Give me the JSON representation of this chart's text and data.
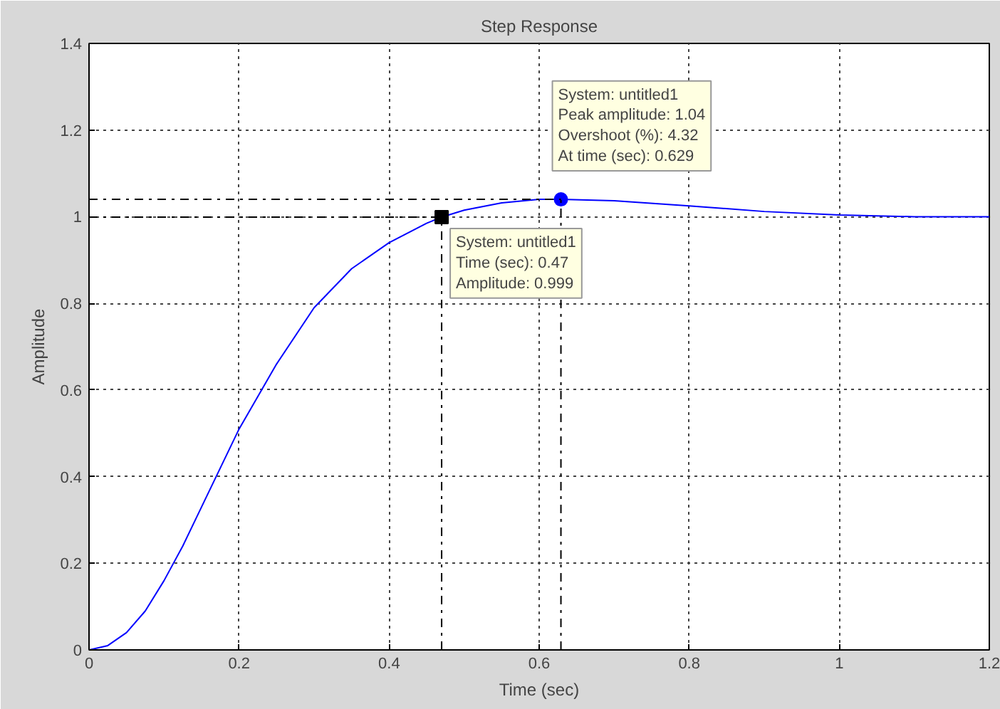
{
  "chart_data": {
    "type": "line",
    "title": "Step Response",
    "xlabel": "Time (sec)",
    "ylabel": "Amplitude",
    "x": [
      0,
      0.025,
      0.05,
      0.075,
      0.1,
      0.125,
      0.15,
      0.175,
      0.2,
      0.25,
      0.3,
      0.35,
      0.4,
      0.45,
      0.47,
      0.5,
      0.55,
      0.6,
      0.629,
      0.7,
      0.8,
      0.9,
      1.0,
      1.1,
      1.2
    ],
    "series": [
      {
        "color": "#0000ff",
        "values": [
          0,
          0.01,
          0.04,
          0.09,
          0.16,
          0.24,
          0.33,
          0.42,
          0.51,
          0.66,
          0.79,
          0.88,
          0.94,
          0.985,
          0.999,
          1.015,
          1.032,
          1.04,
          1.04,
          1.037,
          1.025,
          1.012,
          1.004,
          1.0,
          1.0
        ]
      },
      {
        "type": "scatter",
        "marker": "square",
        "color": "#000000",
        "x": [
          0.47
        ],
        "values": [
          0.999
        ]
      },
      {
        "type": "scatter",
        "marker": "circle",
        "color": "#0000ff",
        "x": [
          0.629
        ],
        "values": [
          1.04
        ]
      }
    ],
    "annotations": [
      {
        "text": "System: untitled1\nTime (sec): 0.47\nAmplitude: 0.999",
        "x": 0.47,
        "y": 0.999
      },
      {
        "text": "System: untitled1\nPeak amplitude: 1.04\nOvershoot (%): 4.32\nAt time (sec): 0.629",
        "x": 0.629,
        "y": 1.04
      }
    ],
    "xlim": [
      0,
      1.2
    ],
    "ylim": [
      0,
      1.4
    ],
    "xticks": [
      0,
      0.2,
      0.4,
      0.6,
      0.8,
      1,
      1.2
    ],
    "yticks": [
      0,
      0.2,
      0.4,
      0.6,
      0.8,
      1,
      1.2,
      1.4
    ],
    "ref_lines": [
      {
        "axis": "x",
        "value": 0.47
      },
      {
        "axis": "y",
        "value": 0.999
      },
      {
        "axis": "x",
        "value": 0.629
      },
      {
        "axis": "y",
        "value": 1.04
      }
    ],
    "grid": true,
    "line_style": "solid"
  }
}
